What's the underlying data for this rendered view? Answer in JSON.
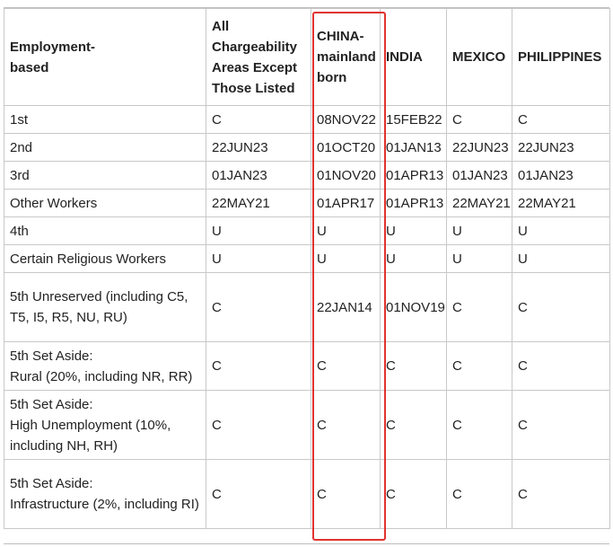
{
  "table": {
    "headers": [
      "Employment-\nbased",
      "All Chargeability Areas Except Those Listed",
      "CHINA-\nmainland born",
      "INDIA",
      "MEXICO",
      "PHILIPPINES"
    ],
    "rows": [
      [
        "1st",
        "C",
        "08NOV22",
        "15FEB22",
        "C",
        "C"
      ],
      [
        "2nd",
        "22JUN23",
        "01OCT20",
        "01JAN13",
        "22JUN23",
        "22JUN23"
      ],
      [
        "3rd",
        "01JAN23",
        "01NOV20",
        "01APR13",
        "01JAN23",
        "01JAN23"
      ],
      [
        "Other Workers",
        "22MAY21",
        "01APR17",
        "01APR13",
        "22MAY21",
        "22MAY21"
      ],
      [
        "4th",
        "U",
        "U",
        "U",
        "U",
        "U"
      ],
      [
        "Certain Religious Workers",
        "U",
        "U",
        "U",
        "U",
        "U"
      ],
      [
        "5th Unreserved (including C5, T5, I5, R5, NU, RU)",
        "C",
        "22JAN14",
        "01NOV19",
        "C",
        "C"
      ],
      [
        "5th Set Aside:\nRural (20%, including NR, RR)",
        "C",
        "C",
        "C",
        "C",
        "C"
      ],
      [
        "5th Set Aside:\nHigh Unemployment (10%, including NH, RH)",
        "C",
        "C",
        "C",
        "C",
        "C"
      ],
      [
        "5th Set Aside:\nInfrastructure (2%, including RI)",
        "C",
        "C",
        "C",
        "C",
        "C"
      ]
    ]
  },
  "highlight": {
    "column": "CHINA-mainland born",
    "color": "#e0332f"
  }
}
